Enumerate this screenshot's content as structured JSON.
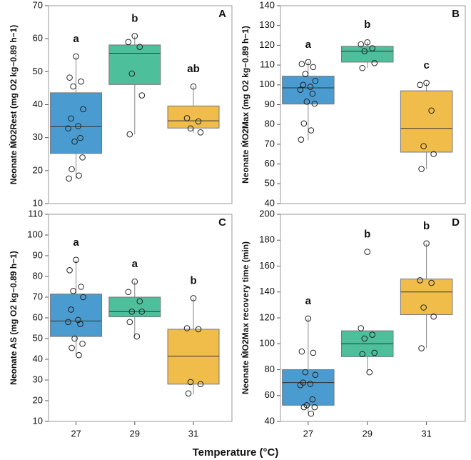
{
  "xlabel": "Temperature (°C)",
  "chart_data": [
    {
      "type": "box",
      "panel": "A",
      "ylabel": "Neonate ṀO2Rest (mg O2 kg−0.89 h−1)",
      "ylim": [
        10,
        70
      ],
      "yticks": [
        10,
        20,
        30,
        40,
        50,
        60,
        70
      ],
      "boxes": [
        {
          "color": "#4a9bd0",
          "whisker_low": 17.5,
          "q1": 25.2,
          "median": 33.3,
          "q3": 43.6,
          "whisker_high": 54.6,
          "points": [
            54.6,
            48.2,
            47,
            45.5,
            38.6,
            35.8,
            33.5,
            32.8,
            29.9,
            28.8,
            24,
            20.4,
            18.5,
            17.6
          ],
          "letter": "a"
        },
        {
          "color": "#4dbf9b",
          "whisker_low": 31,
          "q1": 46.1,
          "median": 55.6,
          "q3": 58.1,
          "whisker_high": 60.8,
          "points": [
            60.8,
            59,
            57.5,
            49.4,
            42.8,
            31
          ],
          "letter": "b"
        },
        {
          "color": "#f0bd4a",
          "whisker_low": 31.5,
          "q1": 32.9,
          "median": 35.1,
          "q3": 39.6,
          "whisker_high": 45.5,
          "points": [
            45.5,
            35.9,
            34.9,
            32.8,
            31.6
          ],
          "letter": "ab"
        }
      ]
    },
    {
      "type": "box",
      "panel": "B",
      "ylabel": "Neonate ṀO2Max (mg O2 kg−0.89 h−1)",
      "ylim": [
        40,
        140
      ],
      "yticks": [
        40,
        50,
        60,
        70,
        80,
        90,
        100,
        110,
        120,
        130,
        140
      ],
      "boxes": [
        {
          "color": "#4a9bd0",
          "whisker_low": 72,
          "q1": 90.3,
          "median": 98.5,
          "q3": 104.4,
          "whisker_high": 111.5,
          "points": [
            111.5,
            110.5,
            109,
            105.5,
            102,
            100,
            99,
            97.5,
            95.5,
            91.5,
            90.5,
            80.5,
            77,
            72.3
          ],
          "letter": "a"
        },
        {
          "color": "#4dbf9b",
          "whisker_low": 108.5,
          "q1": 111.5,
          "median": 117,
          "q3": 119.5,
          "whisker_high": 121.5,
          "points": [
            121.5,
            120.5,
            118.5,
            117,
            111,
            108.5
          ],
          "letter": "b"
        },
        {
          "color": "#f0bd4a",
          "whisker_low": 57.5,
          "q1": 66,
          "median": 78,
          "q3": 97,
          "whisker_high": 101,
          "points": [
            101,
            100,
            87,
            69,
            65,
            57.5
          ],
          "letter": "c"
        }
      ]
    },
    {
      "type": "box",
      "panel": "C",
      "ylabel": "Neonate AS (mg O2 kg−0.89 h−1)",
      "ylim": [
        10,
        110
      ],
      "yticks": [
        10,
        20,
        30,
        40,
        50,
        60,
        70,
        80,
        90,
        100,
        110
      ],
      "categories": [
        "27",
        "29",
        "31"
      ],
      "boxes": [
        {
          "color": "#4a9bd0",
          "whisker_low": 41.5,
          "q1": 51,
          "median": 58.5,
          "q3": 71.5,
          "whisker_high": 88,
          "points": [
            88,
            83,
            75,
            73,
            70,
            64,
            59,
            58,
            57,
            50,
            47.5,
            45.5,
            42
          ],
          "letter": "a"
        },
        {
          "color": "#4dbf9b",
          "whisker_low": 51,
          "q1": 60.5,
          "median": 63,
          "q3": 70,
          "whisker_high": 77.5,
          "points": [
            77.5,
            72.5,
            68,
            63,
            63,
            58,
            51
          ],
          "letter": "a"
        },
        {
          "color": "#f0bd4a",
          "whisker_low": 23,
          "q1": 28,
          "median": 41.5,
          "q3": 54.5,
          "whisker_high": 69.5,
          "points": [
            69.5,
            55,
            54.5,
            29,
            28,
            23.5
          ],
          "letter": "b"
        }
      ]
    },
    {
      "type": "box",
      "panel": "D",
      "ylabel": "Neonate ṀO2Max recovery time (min)",
      "ylim": [
        40,
        200
      ],
      "yticks": [
        40,
        60,
        80,
        100,
        120,
        140,
        160,
        180,
        200
      ],
      "categories": [
        "27",
        "29",
        "31"
      ],
      "boxes": [
        {
          "color": "#4a9bd0",
          "whisker_low": 46,
          "q1": 52.5,
          "median": 70,
          "q3": 80,
          "whisker_high": 119.5,
          "points": [
            119.5,
            94,
            93,
            78,
            76,
            70,
            69,
            68,
            57,
            52.5,
            51,
            51,
            46
          ],
          "letter": "a"
        },
        {
          "color": "#4dbf9b",
          "whisker_low": 78,
          "q1": 90,
          "median": 100,
          "q3": 110,
          "whisker_high": 110,
          "points": [
            171,
            112,
            107,
            104,
            93,
            92,
            78
          ],
          "letter": "b"
        },
        {
          "color": "#f0bd4a",
          "whisker_low": 96.5,
          "q1": 122.5,
          "median": 140,
          "q3": 150,
          "whisker_high": 177.5,
          "points": [
            177.5,
            149,
            147,
            128,
            121,
            96.5
          ],
          "letter": "b"
        }
      ]
    }
  ]
}
